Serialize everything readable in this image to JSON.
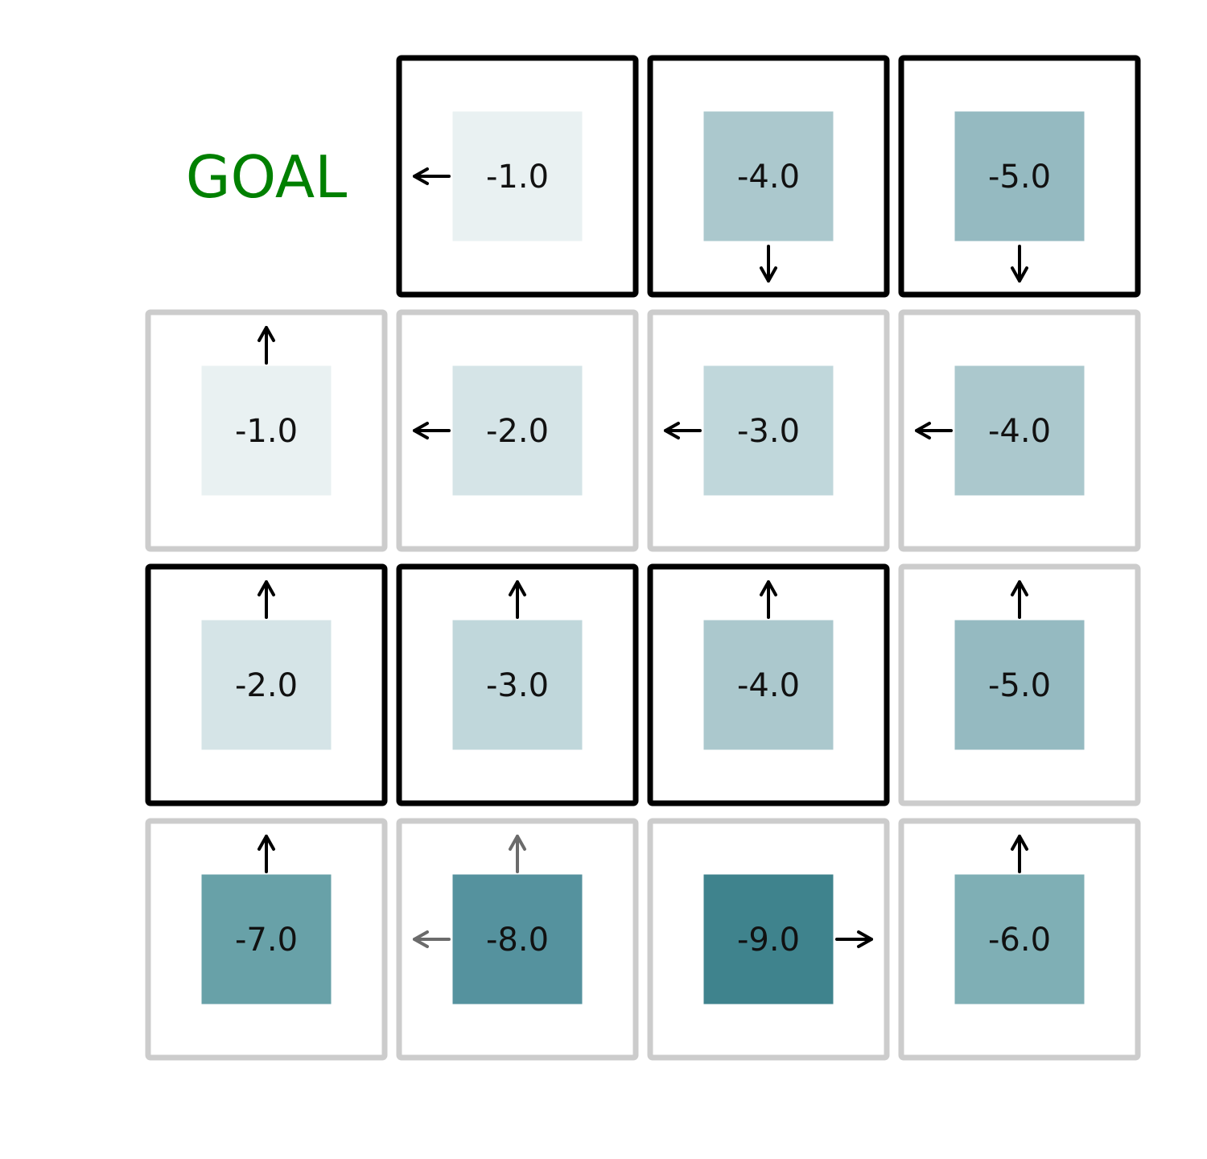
{
  "goal": {
    "label": "GOAL",
    "color": "#008000"
  },
  "colors": {
    "border_highlight": "#000000",
    "border_normal": "#cccccc",
    "arrow_strong": "#000000",
    "arrow_faint": "#6b6b6b",
    "value_text": "#111111"
  },
  "value_colors": {
    "-1.0": "#e9f1f2",
    "-2.0": "#d5e4e7",
    "-3.0": "#c0d7db",
    "-4.0": "#abc8cd",
    "-5.0": "#95bac1",
    "-6.0": "#7fafb5",
    "-7.0": "#68a1a8",
    "-8.0": "#55929e",
    "-9.0": "#3f838d"
  },
  "cells": [
    {
      "row": 0,
      "col": 0,
      "goal": true
    },
    {
      "row": 0,
      "col": 1,
      "value": "-1.0",
      "highlight": true,
      "arrows": [
        {
          "dir": "left",
          "faint": false
        }
      ]
    },
    {
      "row": 0,
      "col": 2,
      "value": "-4.0",
      "highlight": true,
      "arrows": [
        {
          "dir": "down",
          "faint": false
        }
      ]
    },
    {
      "row": 0,
      "col": 3,
      "value": "-5.0",
      "highlight": true,
      "arrows": [
        {
          "dir": "down",
          "faint": false
        }
      ]
    },
    {
      "row": 1,
      "col": 0,
      "value": "-1.0",
      "highlight": false,
      "arrows": [
        {
          "dir": "up",
          "faint": false
        }
      ]
    },
    {
      "row": 1,
      "col": 1,
      "value": "-2.0",
      "highlight": false,
      "arrows": [
        {
          "dir": "left",
          "faint": false
        }
      ]
    },
    {
      "row": 1,
      "col": 2,
      "value": "-3.0",
      "highlight": false,
      "arrows": [
        {
          "dir": "left",
          "faint": false
        }
      ]
    },
    {
      "row": 1,
      "col": 3,
      "value": "-4.0",
      "highlight": false,
      "arrows": [
        {
          "dir": "left",
          "faint": false
        }
      ]
    },
    {
      "row": 2,
      "col": 0,
      "value": "-2.0",
      "highlight": true,
      "arrows": [
        {
          "dir": "up",
          "faint": false
        }
      ]
    },
    {
      "row": 2,
      "col": 1,
      "value": "-3.0",
      "highlight": true,
      "arrows": [
        {
          "dir": "up",
          "faint": false
        }
      ]
    },
    {
      "row": 2,
      "col": 2,
      "value": "-4.0",
      "highlight": true,
      "arrows": [
        {
          "dir": "up",
          "faint": false
        }
      ]
    },
    {
      "row": 2,
      "col": 3,
      "value": "-5.0",
      "highlight": false,
      "arrows": [
        {
          "dir": "up",
          "faint": false
        }
      ]
    },
    {
      "row": 3,
      "col": 0,
      "value": "-7.0",
      "highlight": false,
      "arrows": [
        {
          "dir": "up",
          "faint": false
        }
      ]
    },
    {
      "row": 3,
      "col": 1,
      "value": "-8.0",
      "highlight": false,
      "arrows": [
        {
          "dir": "up",
          "faint": true
        },
        {
          "dir": "left",
          "faint": true
        }
      ]
    },
    {
      "row": 3,
      "col": 2,
      "value": "-9.0",
      "highlight": false,
      "arrows": [
        {
          "dir": "right",
          "faint": false
        }
      ]
    },
    {
      "row": 3,
      "col": 3,
      "value": "-6.0",
      "highlight": false,
      "arrows": [
        {
          "dir": "up",
          "faint": false
        }
      ]
    }
  ]
}
